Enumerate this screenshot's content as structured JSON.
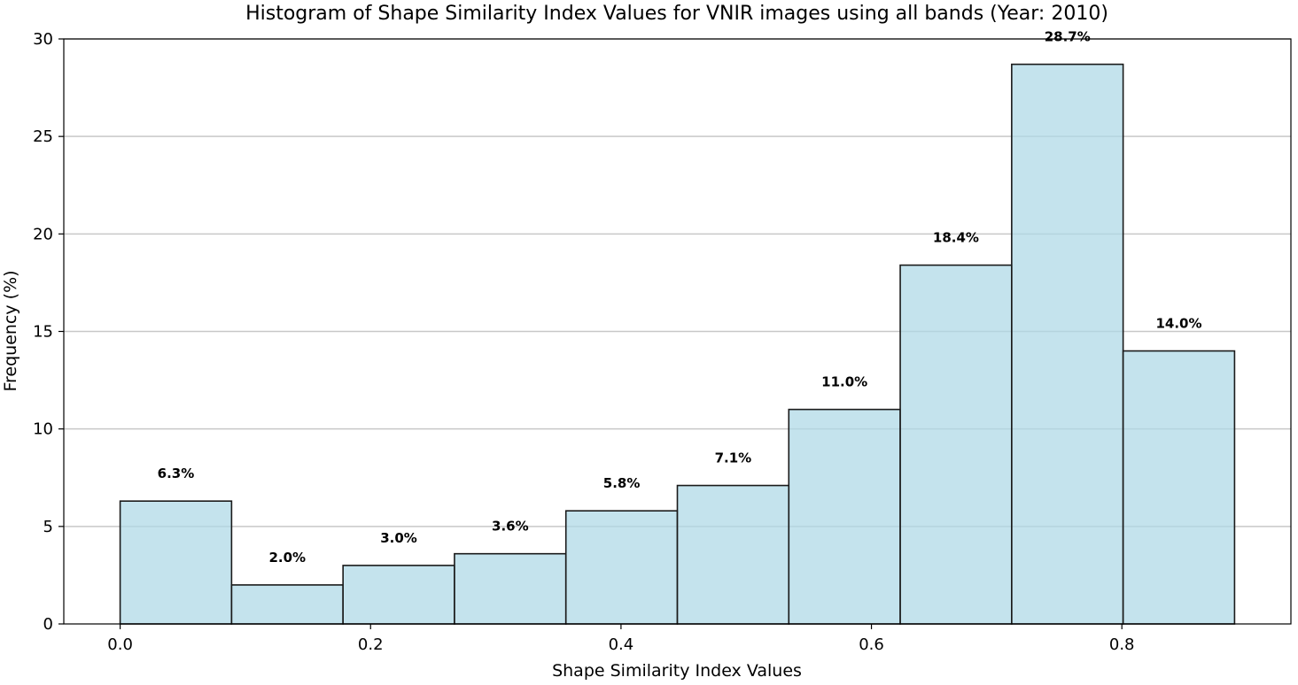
{
  "chart_data": {
    "type": "bar",
    "title": "Histogram of Shape Similarity Index Values for VNIR images using all bands (Year: 2010)",
    "xlabel": "Shape Similarity Index Values",
    "ylabel": "Frequency (%)",
    "bin_edges": [
      0.0,
      0.089,
      0.178,
      0.267,
      0.356,
      0.445,
      0.534,
      0.623,
      0.712,
      0.801,
      0.89
    ],
    "values": [
      6.3,
      2.0,
      3.0,
      3.6,
      5.8,
      7.1,
      11.0,
      18.4,
      28.7,
      14.0
    ],
    "data_labels": [
      "6.3%",
      "2.0%",
      "3.0%",
      "3.6%",
      "5.8%",
      "7.1%",
      "11.0%",
      "18.4%",
      "28.7%",
      "14.0%"
    ],
    "xlim": [
      -0.045,
      0.935
    ],
    "ylim": [
      0,
      30
    ],
    "x_ticks": [
      0.0,
      0.2,
      0.4,
      0.6,
      0.8
    ],
    "x_tick_labels": [
      "0.0",
      "0.2",
      "0.4",
      "0.6",
      "0.8"
    ],
    "y_ticks": [
      0,
      5,
      10,
      15,
      20,
      25,
      30
    ],
    "y_tick_labels": [
      "0",
      "5",
      "10",
      "15",
      "20",
      "25",
      "30"
    ],
    "grid": "y",
    "bar_color": "#add8e6",
    "edge_color": "#1a1a1a"
  }
}
